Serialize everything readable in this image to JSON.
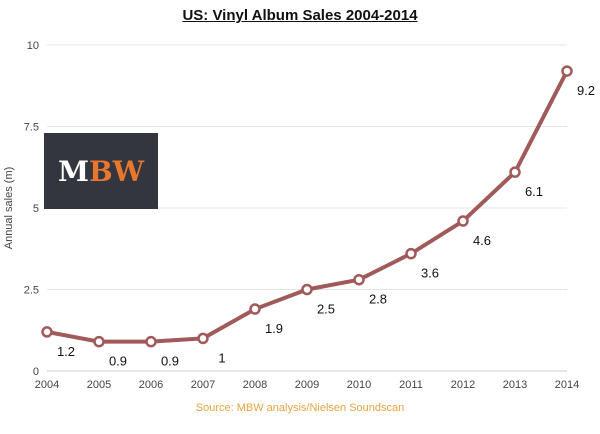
{
  "title": "US: Vinyl Album Sales 2004-2014",
  "source": "Source: MBW analysis/Nielsen Soundscan",
  "logo": {
    "text_m": "M",
    "text_b": "B",
    "text_w": "W"
  },
  "colors": {
    "line": "#a05a5a",
    "marker_fill": "#ffffff",
    "grid": "#e4e4e4",
    "source_text": "#e8a343",
    "logo_bg": "#33363e",
    "logo_accent": "#e8772e"
  },
  "chart_data": {
    "type": "line",
    "title": "US: Vinyl Album Sales 2004-2014",
    "xlabel": "",
    "ylabel": "Annual sales (m)",
    "x": [
      "2004",
      "2005",
      "2006",
      "2007",
      "2008",
      "2009",
      "2010",
      "2011",
      "2012",
      "2013",
      "2014"
    ],
    "series": [
      {
        "values": [
          1.2,
          0.9,
          0.9,
          1,
          1.9,
          2.5,
          2.8,
          3.6,
          4.6,
          6.1,
          9.2
        ]
      }
    ],
    "data_labels": [
      "1.2",
      "0.9",
      "0.9",
      "1",
      "1.9",
      "2.5",
      "2.8",
      "3.6",
      "4.6",
      "6.1",
      "9.2"
    ],
    "yticks": [
      "0",
      "2.5",
      "5",
      "7.5",
      "10"
    ],
    "ylim": [
      0,
      10
    ],
    "grid": true,
    "legend": "none"
  }
}
